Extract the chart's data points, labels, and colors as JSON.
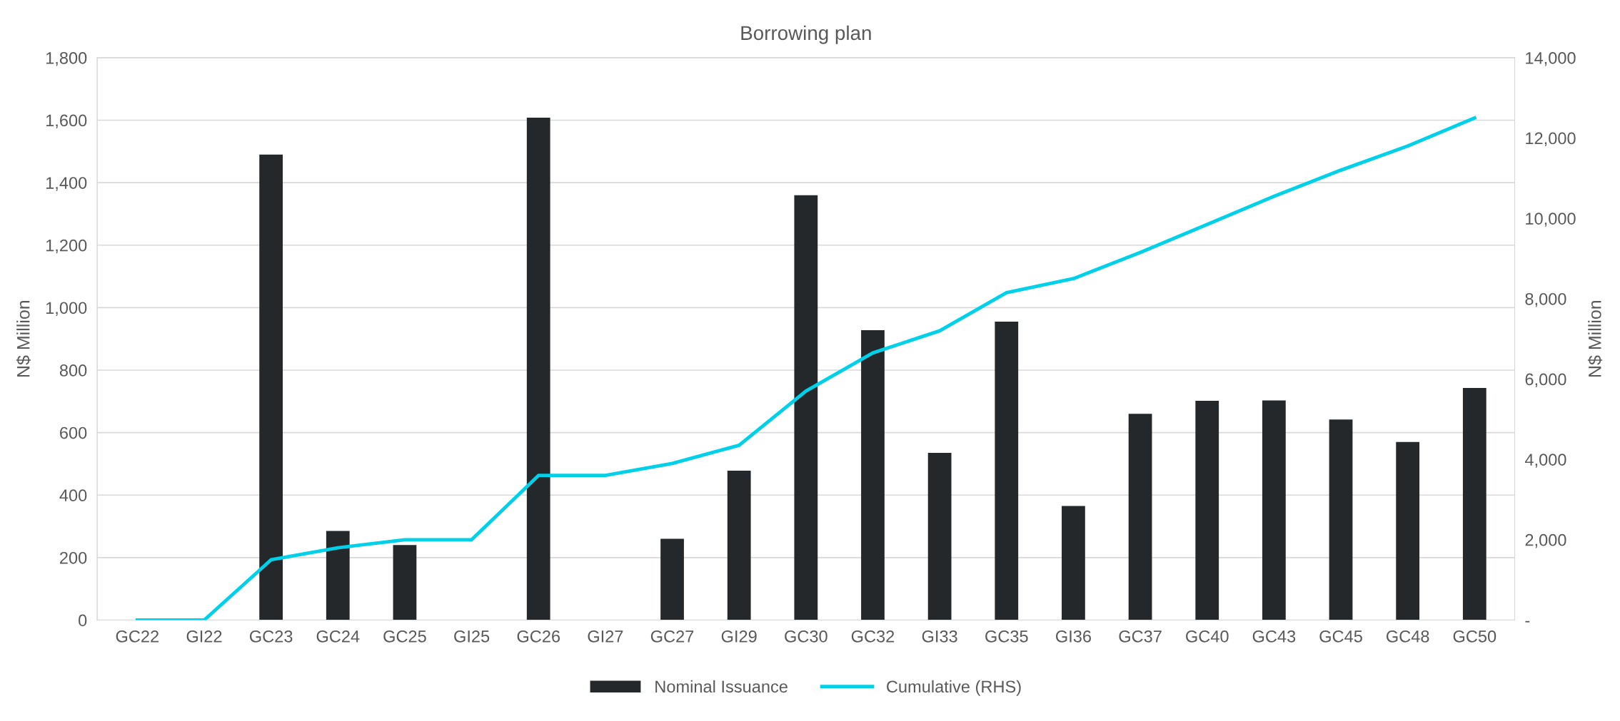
{
  "chart_data": {
    "type": "bar",
    "title": "Borrowing plan",
    "ylabel": "N$ Million",
    "y2label": "N$ Million",
    "categories": [
      "GC22",
      "GI22",
      "GC23",
      "GC24",
      "GC25",
      "GI25",
      "GC26",
      "GI27",
      "GC27",
      "GI29",
      "GC30",
      "GC32",
      "GI33",
      "GC35",
      "GI36",
      "GC37",
      "GC40",
      "GC43",
      "GC45",
      "GC48",
      "GC50"
    ],
    "series": [
      {
        "name": "Nominal Issuance",
        "color": "#25282b",
        "values": [
          0,
          0,
          1490,
          285,
          240,
          0,
          1608,
          0,
          260,
          478,
          1360,
          928,
          535,
          955,
          365,
          660,
          702,
          703,
          642,
          570,
          743
        ]
      },
      {
        "name": "Cumulative (RHS)",
        "type": "line",
        "axis": "y2",
        "color": "#00d1e8",
        "values": [
          0,
          0,
          1500,
          1800,
          2000,
          2000,
          3600,
          3600,
          3900,
          4350,
          5700,
          6650,
          7200,
          8150,
          8500,
          9150,
          9850,
          10550,
          11200,
          11800,
          12500
        ]
      }
    ],
    "ylim": [
      0,
      1800
    ],
    "yticks": [
      0,
      200,
      400,
      600,
      800,
      {
        "value": 1000,
        "label": "1,000"
      },
      {
        "value": 1200,
        "label": "1,200"
      },
      {
        "value": 1400,
        "label": "1,400"
      },
      {
        "value": 1600,
        "label": "1,600"
      },
      {
        "value": 1800,
        "label": "1,800"
      }
    ],
    "y2lim": [
      0,
      14000
    ],
    "y2ticks": [
      {
        "value": 0,
        "label": "-"
      },
      {
        "value": 2000,
        "label": "2,000"
      },
      {
        "value": 4000,
        "label": "4,000"
      },
      {
        "value": 6000,
        "label": "6,000"
      },
      {
        "value": 8000,
        "label": "8,000"
      },
      {
        "value": 10000,
        "label": "10,000"
      },
      {
        "value": 12000,
        "label": "12,000"
      },
      {
        "value": 14000,
        "label": "14,000"
      }
    ],
    "grid": "y",
    "legend": "bottom"
  }
}
